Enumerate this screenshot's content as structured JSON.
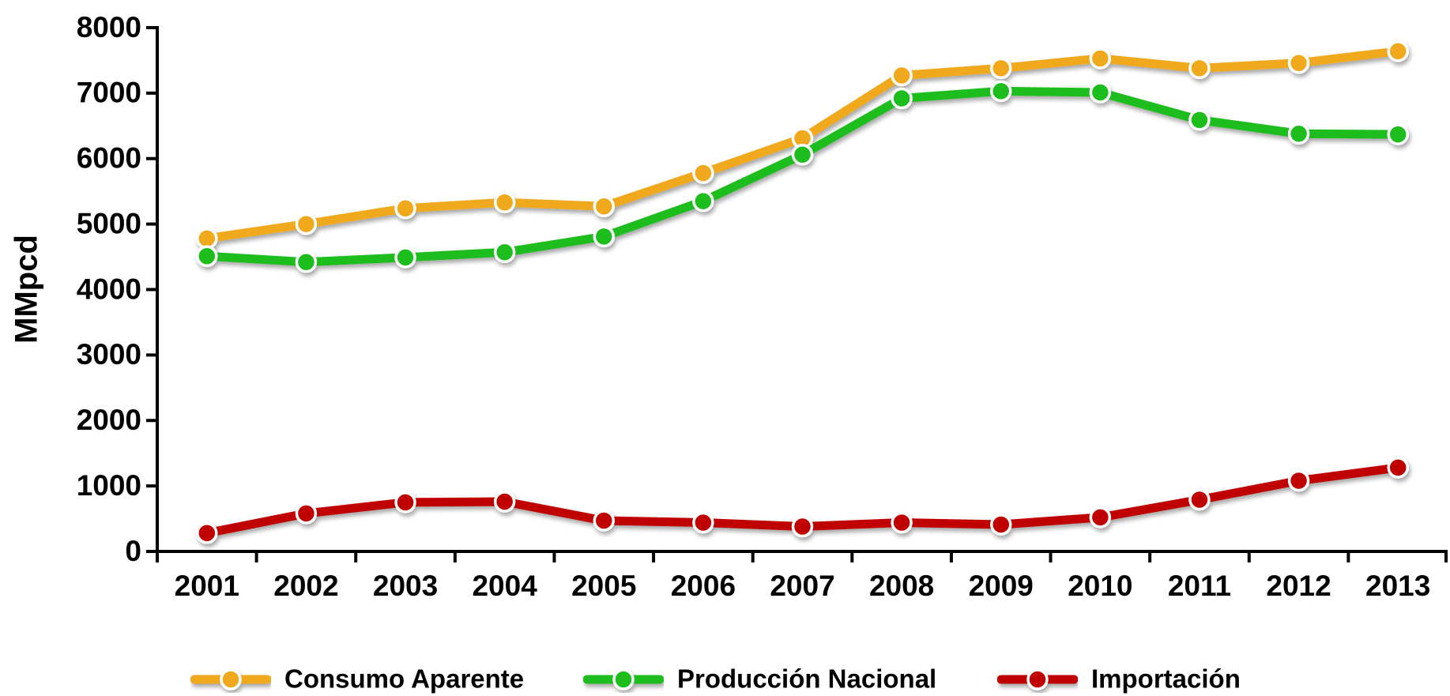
{
  "chart_data": {
    "type": "line",
    "y_label": "MMpcd",
    "categories": [
      "2001",
      "2002",
      "2003",
      "2004",
      "2005",
      "2006",
      "2007",
      "2008",
      "2009",
      "2010",
      "2011",
      "2012",
      "2013"
    ],
    "series": [
      {
        "name": "Consumo Aparente",
        "color": "#f0a91e",
        "values": [
          4780,
          5000,
          5240,
          5330,
          5270,
          5780,
          6310,
          7270,
          7380,
          7530,
          7380,
          7460,
          7640
        ]
      },
      {
        "name": "Producción Nacional",
        "color": "#1dbd1d",
        "values": [
          4510,
          4420,
          4490,
          4570,
          4810,
          5350,
          6060,
          6920,
          7030,
          7010,
          6590,
          6380,
          6370
        ]
      },
      {
        "name": "Importación",
        "color": "#c00000",
        "values": [
          280,
          580,
          750,
          760,
          470,
          440,
          380,
          440,
          410,
          520,
          790,
          1080,
          1280
        ]
      }
    ],
    "ylim": [
      0,
      8000
    ],
    "yticks": [
      0,
      1000,
      2000,
      3000,
      4000,
      5000,
      6000,
      7000,
      8000
    ],
    "grid": false,
    "legend": "bottom"
  }
}
